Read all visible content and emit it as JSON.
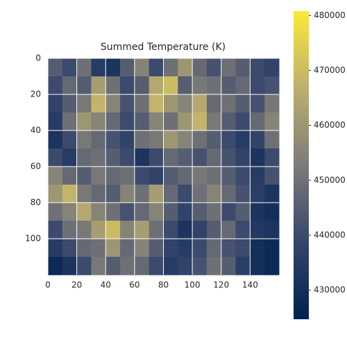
{
  "chart_data": {
    "type": "heatmap",
    "title": "Summed Temperature (K)",
    "colormap": "cividis",
    "grid": true,
    "y_inverted": true,
    "xlim": [
      0,
      160
    ],
    "ylim": [
      0,
      120
    ],
    "xticks": [
      0,
      20,
      40,
      60,
      80,
      100,
      120,
      140
    ],
    "yticks": [
      0,
      20,
      40,
      60,
      80,
      100
    ],
    "clim": [
      424700,
      480800
    ],
    "cticks": [
      430000,
      440000,
      450000,
      460000,
      470000,
      480000
    ],
    "z": [
      [
        445000,
        440000,
        450000,
        435000,
        432000,
        445000,
        455000,
        440000,
        450000,
        460000,
        448000,
        442000,
        450000,
        445000,
        440000,
        438000
      ],
      [
        440000,
        448000,
        445000,
        462000,
        450000,
        440000,
        445000,
        465000,
        470000,
        445000,
        452000,
        450000,
        445000,
        448000,
        440000,
        442000
      ],
      [
        438000,
        445000,
        452000,
        468000,
        455000,
        442000,
        450000,
        468000,
        460000,
        455000,
        465000,
        448000,
        450000,
        445000,
        442000,
        452000
      ],
      [
        435000,
        450000,
        460000,
        455000,
        448000,
        440000,
        445000,
        455000,
        450000,
        460000,
        468000,
        452000,
        445000,
        440000,
        448000,
        455000
      ],
      [
        432000,
        440000,
        452000,
        448000,
        442000,
        438000,
        450000,
        452000,
        460000,
        455000,
        450000,
        445000,
        440000,
        435000,
        438000,
        450000
      ],
      [
        440000,
        435000,
        448000,
        450000,
        445000,
        440000,
        432000,
        440000,
        448000,
        445000,
        442000,
        448000,
        442000,
        438000,
        432000,
        440000
      ],
      [
        455000,
        448000,
        445000,
        452000,
        448000,
        450000,
        440000,
        438000,
        445000,
        448000,
        452000,
        450000,
        445000,
        440000,
        435000,
        442000
      ],
      [
        460000,
        468000,
        452000,
        448000,
        445000,
        455000,
        450000,
        462000,
        448000,
        440000,
        450000,
        455000,
        448000,
        442000,
        436000,
        432000
      ],
      [
        450000,
        455000,
        465000,
        455000,
        450000,
        442000,
        448000,
        455000,
        445000,
        438000,
        445000,
        450000,
        440000,
        445000,
        432000,
        430000
      ],
      [
        440000,
        450000,
        452000,
        462000,
        470000,
        455000,
        462000,
        450000,
        440000,
        432000,
        438000,
        445000,
        448000,
        440000,
        434000,
        432000
      ],
      [
        435000,
        440000,
        448000,
        450000,
        460000,
        448000,
        455000,
        445000,
        438000,
        435000,
        440000,
        448000,
        442000,
        440000,
        430000,
        428000
      ],
      [
        428000,
        432000,
        440000,
        452000,
        445000,
        450000,
        448000,
        440000,
        435000,
        438000,
        442000,
        450000,
        445000,
        436000,
        430000,
        428000
      ]
    ]
  }
}
